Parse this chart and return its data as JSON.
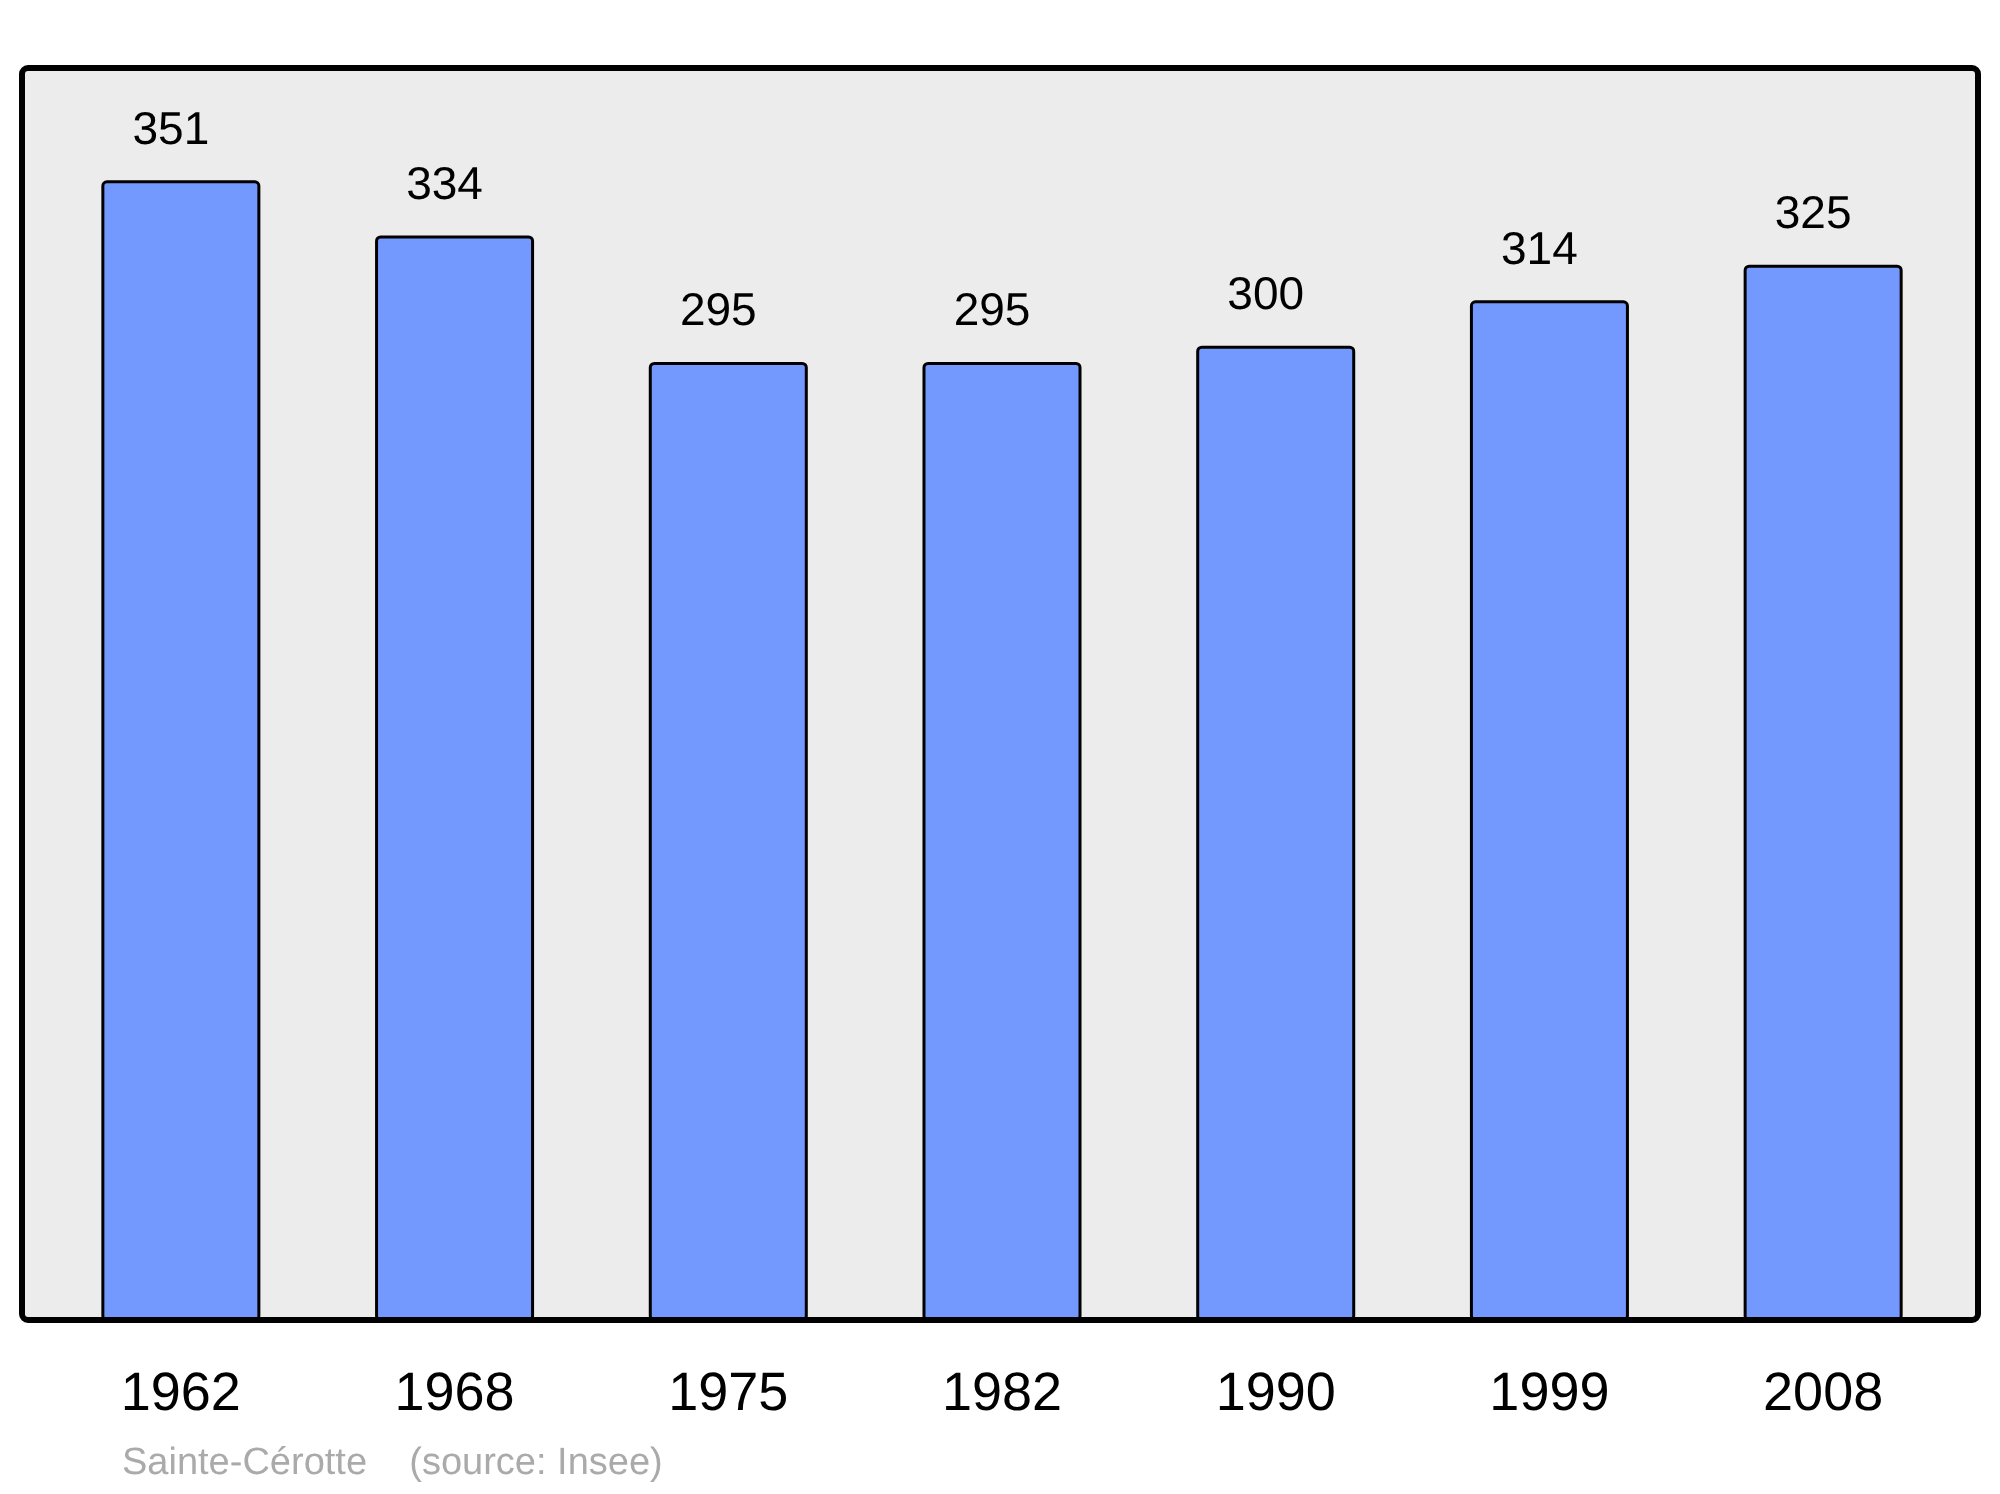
{
  "chart_data": {
    "type": "bar",
    "categories": [
      "1962",
      "1968",
      "1975",
      "1982",
      "1990",
      "1999",
      "2008"
    ],
    "values": [
      351,
      334,
      295,
      295,
      300,
      314,
      325
    ],
    "color": "#7399ff",
    "data_labels": true,
    "annotations": [
      "Sainte-Cérotte    (source: Insee)"
    ]
  }
}
